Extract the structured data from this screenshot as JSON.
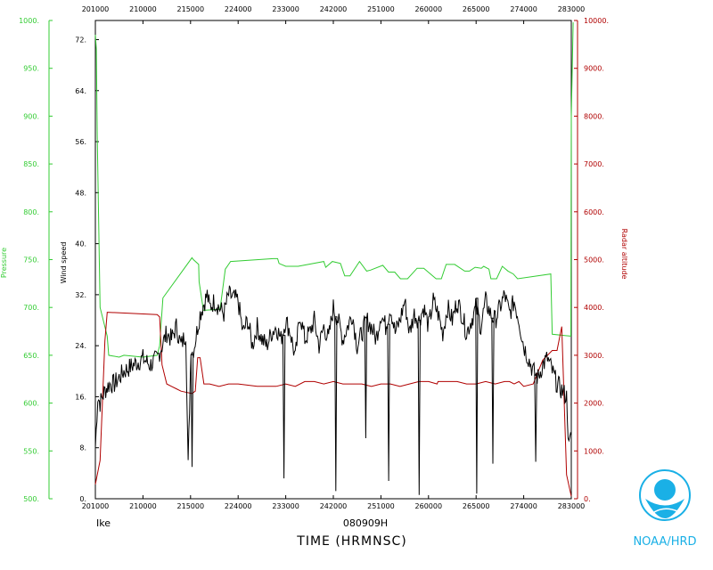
{
  "chart_data": {
    "type": "line",
    "xlabel": "TIME (HRMNSC)",
    "storm": "Ike",
    "date": "080909H",
    "credit": "NOAA/HRD",
    "logo_text": "NOAA",
    "x_ticks": [
      "201000",
      "210000",
      "215000",
      "224000",
      "233000",
      "242000",
      "251000",
      "260000",
      "265000",
      "274000",
      "283000"
    ],
    "axes": {
      "wind": {
        "label": "Wind speed",
        "ylim": [
          0,
          75
        ],
        "ticks": [
          "0.",
          "8.",
          "16.",
          "24.",
          "32.",
          "40.",
          "48.",
          "56.",
          "64.",
          "72."
        ],
        "color": "#000000"
      },
      "pressure": {
        "label": "Pressure",
        "ylim": [
          500,
          1000
        ],
        "ticks": [
          "500.",
          "550.",
          "600.",
          "650.",
          "700.",
          "750.",
          "800.",
          "850.",
          "900.",
          "950.",
          "1000."
        ],
        "color": "#33cc33"
      },
      "altitude": {
        "label": "Radar altitude",
        "ylim": [
          0,
          10000
        ],
        "ticks": [
          "0.",
          "1000.",
          "2000.",
          "3000.",
          "4000.",
          "5000.",
          "6000.",
          "7000.",
          "8000.",
          "9000.",
          "10000."
        ],
        "color": "#b00000"
      }
    },
    "series": [
      {
        "name": "Pressure",
        "axis": "pressure",
        "color": "#33cc33",
        "x": [
          0,
          0.2,
          0.4,
          1.0,
          2.5,
          2.8,
          5,
          6,
          10,
          13,
          13.5,
          14.2,
          20.3,
          20.6,
          21.7,
          21.8,
          22.7,
          22.8,
          26.2,
          27.3,
          28.4,
          37.4,
          38.3,
          38.6,
          40,
          42.6,
          48,
          48.4,
          49.8,
          51.5,
          52.4,
          53.5,
          55.5,
          57,
          57.8,
          60.4,
          61.6,
          62.9,
          64.1,
          65.6,
          67.6,
          69,
          71.6,
          72.7,
          73.7,
          75.5,
          77.6,
          78.6,
          79.8,
          81.1,
          81.6,
          82.7,
          83.1,
          84.3,
          85.5,
          86.7,
          87.8,
          88.7,
          95.7,
          96,
          99.9,
          100,
          100.4
        ],
        "y": [
          985,
          970,
          880,
          700,
          670,
          650,
          648,
          650,
          648,
          650,
          660,
          710,
          752,
          750,
          745,
          727,
          697,
          697,
          698,
          740,
          748,
          751,
          751,
          746,
          743,
          743,
          748,
          742,
          748,
          746,
          733,
          733,
          748,
          738,
          739,
          744,
          737,
          737,
          730,
          730,
          741,
          741,
          730,
          730,
          745,
          745,
          738,
          738,
          742,
          741,
          743,
          740,
          730,
          730,
          743,
          738,
          735,
          730,
          735,
          672,
          670,
          900,
          998
        ]
      },
      {
        "name": "Radar altitude",
        "axis": "altitude",
        "color": "#b00000",
        "x": [
          0,
          1,
          2,
          2.5,
          13,
          13.5,
          14,
          15,
          16,
          17,
          18,
          20.3,
          21,
          21.5,
          22,
          22.8,
          24,
          26,
          28,
          30,
          34,
          38,
          40,
          42,
          44,
          46,
          48,
          50,
          52,
          54,
          56,
          58,
          60,
          62,
          64,
          66,
          68,
          70,
          71.8,
          72,
          73.5,
          74,
          76,
          78,
          80,
          82,
          84,
          86,
          87,
          88,
          89,
          90,
          92,
          94,
          96,
          97,
          98,
          99,
          100
        ],
        "y": [
          300,
          800,
          3300,
          3900,
          3850,
          3800,
          2800,
          2400,
          2350,
          2300,
          2250,
          2200,
          2250,
          2950,
          2950,
          2400,
          2400,
          2350,
          2400,
          2400,
          2350,
          2350,
          2400,
          2350,
          2450,
          2450,
          2400,
          2450,
          2400,
          2400,
          2400,
          2350,
          2400,
          2400,
          2350,
          2400,
          2450,
          2450,
          2400,
          2450,
          2450,
          2450,
          2450,
          2400,
          2400,
          2450,
          2400,
          2450,
          2450,
          2400,
          2450,
          2350,
          2400,
          2900,
          3100,
          3100,
          3600,
          500,
          50
        ]
      },
      {
        "name": "Wind speed",
        "axis": "wind",
        "color": "#000000",
        "x": [
          0,
          0.5,
          1,
          2,
          3,
          4,
          6,
          8,
          10,
          11.5,
          13,
          14,
          15,
          16,
          17,
          18,
          19,
          19.5,
          20.1,
          20.4,
          20.8,
          22,
          23.5,
          24,
          25,
          26,
          27,
          28,
          30,
          31,
          32,
          33,
          34,
          35,
          36,
          37,
          38,
          39,
          40,
          41,
          42,
          43,
          44,
          45,
          46,
          47,
          48,
          49,
          50,
          51,
          52,
          53,
          54,
          55,
          56,
          57,
          58,
          59,
          60,
          61,
          62,
          63,
          64,
          65,
          66,
          67,
          68,
          69,
          70,
          71,
          72,
          73,
          74,
          75,
          76,
          77,
          78,
          79,
          80,
          81,
          82,
          83,
          84,
          85,
          86,
          87,
          88,
          89,
          90,
          91,
          92,
          93,
          94,
          95,
          96,
          97,
          98,
          99,
          99.5,
          100
        ],
        "y": [
          8,
          16,
          15,
          17,
          18,
          18,
          20,
          21,
          22,
          21,
          22,
          24,
          26,
          25,
          27,
          24,
          26,
          5,
          24,
          23,
          24,
          29,
          32,
          30,
          31,
          30,
          29,
          32,
          31,
          26,
          28,
          24,
          27,
          25,
          24,
          26,
          27,
          25,
          28,
          26,
          22,
          29,
          25,
          26,
          28,
          24,
          27,
          25,
          30,
          28,
          25,
          27,
          29,
          24,
          26,
          28,
          27,
          25,
          29,
          27,
          30,
          26,
          28,
          31,
          26,
          29,
          28,
          30,
          27,
          31,
          29,
          26,
          30,
          28,
          31,
          29,
          26,
          28,
          30,
          27,
          31,
          29,
          28,
          30,
          32,
          29,
          31,
          28,
          24,
          22,
          20,
          19,
          21,
          22,
          20,
          18,
          17,
          16,
          8,
          10
        ]
      }
    ],
    "wind_spikes": [
      {
        "x": 20.1,
        "y": 5
      },
      {
        "x": 39.4,
        "y": 3.2
      },
      {
        "x": 50.3,
        "y": 1.2
      },
      {
        "x": 56.6,
        "y": 9.5
      },
      {
        "x": 61.4,
        "y": 2.8
      },
      {
        "x": 67.8,
        "y": 0.6
      },
      {
        "x": 79.9,
        "y": 0.8
      },
      {
        "x": 83.3,
        "y": 5.5
      },
      {
        "x": 92.3,
        "y": 5.8
      }
    ]
  }
}
